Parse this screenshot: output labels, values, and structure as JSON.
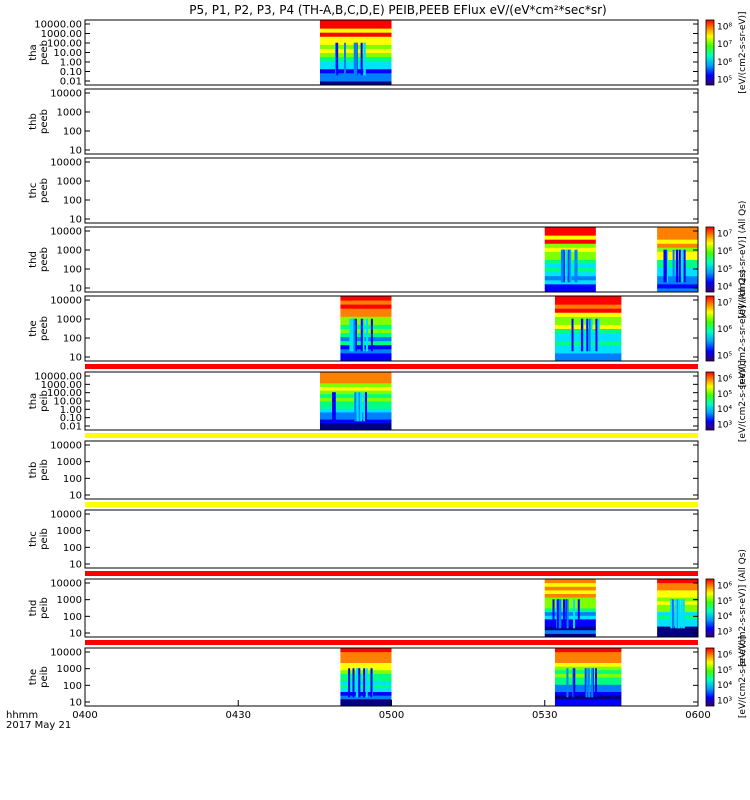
{
  "chart_data": {
    "type": "heatmap",
    "title": "P5, P1, P2, P3, P4 (TH-A,B,C,D,E) PEIB,PEEB EFlux eV/(eV*cm²*sec*sr)",
    "x_ticks": [
      "0400",
      "0430",
      "0500",
      "0530",
      "0600"
    ],
    "x_range": [
      "0400",
      "0600"
    ],
    "x_label_line1": "hhmm",
    "x_label_line2": "2017 May 21",
    "grid": false,
    "panels": [
      {
        "label1": "tha",
        "label2": "peeb",
        "y_ticks": [
          "10000.00",
          "1000.00",
          "100.00",
          "10.00",
          "1.00",
          "0.10",
          "0.01"
        ],
        "segments": [
          [
            "0446",
            "0500"
          ]
        ],
        "colorbar": {
          "ticks": [
            "10⁸",
            "10⁷",
            "10⁶",
            "10⁵"
          ],
          "label": "[eV/(cm2-s-sr-eV)]"
        }
      },
      {
        "label1": "thb",
        "label2": "peeb",
        "y_ticks": [
          "10000",
          "1000",
          "100",
          "10"
        ],
        "segments": []
      },
      {
        "label1": "thc",
        "label2": "peeb",
        "y_ticks": [
          "10000",
          "1000",
          "100",
          "10"
        ],
        "segments": []
      },
      {
        "label1": "thd",
        "label2": "peeb",
        "y_ticks": [
          "10000",
          "1000",
          "100",
          "10"
        ],
        "segments": [
          [
            "0530",
            "0540"
          ],
          [
            "0552",
            "0600"
          ]
        ],
        "colorbar": {
          "ticks": [
            "10⁷",
            "10⁶",
            "10⁵",
            "10⁴"
          ],
          "label": "[eV/(cm2-s-sr-eV)] (All Qs)"
        }
      },
      {
        "label1": "the",
        "label2": "peeb",
        "y_ticks": [
          "10000",
          "1000",
          "100",
          "10"
        ],
        "segments": [
          [
            "0450",
            "0500"
          ],
          [
            "0532",
            "0545"
          ]
        ],
        "colorbar": {
          "ticks": [
            "10⁷",
            "10⁶",
            "10⁵"
          ],
          "label": "[eV/(cm2-s-sr-eV)] (All Qs)"
        }
      },
      {
        "label1": "tha",
        "label2": "peib",
        "y_ticks": [
          "10000.00",
          "1000.00",
          "100.00",
          "10.00",
          "1.00",
          "0.10",
          "0.01"
        ],
        "segments": [
          [
            "0446",
            "0500"
          ]
        ],
        "colorbar": {
          "ticks": [
            "10⁶",
            "10⁵",
            "10⁴",
            "10³"
          ],
          "label": "[eV/(cm2-s-sr-eV)]"
        }
      },
      {
        "label1": "thb",
        "label2": "peib",
        "y_ticks": [
          "10000",
          "1000",
          "100",
          "10"
        ],
        "segments": []
      },
      {
        "label1": "thc",
        "label2": "peib",
        "y_ticks": [
          "10000",
          "1000",
          "100",
          "10"
        ],
        "segments": []
      },
      {
        "label1": "thd",
        "label2": "peib",
        "y_ticks": [
          "10000",
          "1000",
          "100",
          "10"
        ],
        "segments": [
          [
            "0530",
            "0540"
          ],
          [
            "0552",
            "0600"
          ]
        ],
        "colorbar": {
          "ticks": [
            "10⁶",
            "10⁵",
            "10⁴",
            "10³"
          ],
          "label": "[eV/(cm2-s-sr-eV)] (All Qs)"
        }
      },
      {
        "label1": "the",
        "label2": "peib",
        "y_ticks": [
          "10000",
          "1000",
          "100",
          "10"
        ],
        "segments": [
          [
            "0450",
            "0500"
          ],
          [
            "0532",
            "0545"
          ]
        ],
        "colorbar": {
          "ticks": [
            "10⁶",
            "10⁵",
            "10⁴",
            "10³"
          ],
          "label": "[eV/(cm2-s-sr-eV)]"
        }
      }
    ],
    "separator_colors": [
      "#ff0000",
      "#ffff00",
      "#ffff00",
      "#ff0000",
      "#ff0000"
    ],
    "colorscale": [
      "#000080",
      "#0000ff",
      "#0080ff",
      "#00e0ff",
      "#00ff80",
      "#80ff00",
      "#ffff00",
      "#ff8000",
      "#ff0000"
    ]
  }
}
